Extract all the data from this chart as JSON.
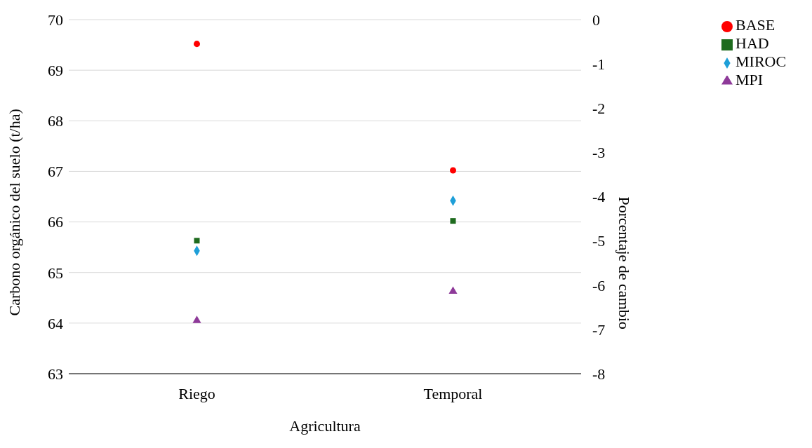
{
  "chart_data": {
    "type": "scatter",
    "xlabel": "Agricultura",
    "ylabel": "Carbono orgánico del suelo (t/ha)",
    "y2label": "Porcentaje de cambio",
    "categories": [
      "Riego",
      "Temporal"
    ],
    "series": [
      {
        "name": "BASE",
        "color": "#ff0000",
        "marker": "circle",
        "values": [
          69.52,
          67.02
        ]
      },
      {
        "name": "HAD",
        "color": "#1e6b1e",
        "marker": "square",
        "values": [
          65.63,
          66.02
        ]
      },
      {
        "name": "MIROC",
        "color": "#1e9fd8",
        "marker": "diamond",
        "values": [
          65.43,
          66.42
        ]
      },
      {
        "name": "MPI",
        "color": "#8e3a99",
        "marker": "triangle",
        "values": [
          64.05,
          64.63
        ]
      }
    ],
    "ylim": [
      63,
      70
    ],
    "yticks": [
      63,
      64,
      65,
      66,
      67,
      68,
      69,
      70
    ],
    "y2lim": [
      -8,
      0
    ],
    "y2ticks": [
      -8,
      -7,
      -6,
      -5,
      -4,
      -3,
      -2,
      -1,
      0
    ],
    "grid": "y",
    "legend": "top right"
  }
}
